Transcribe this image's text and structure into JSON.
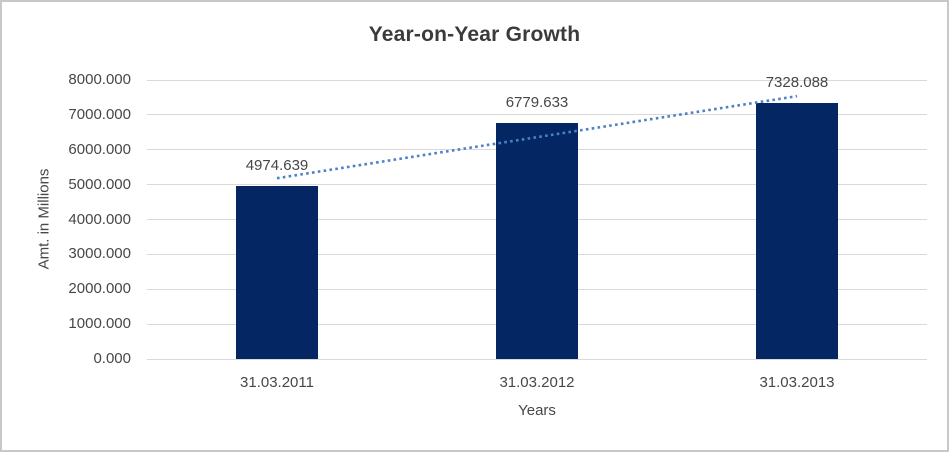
{
  "chart_data": {
    "type": "bar",
    "title": "Year-on-Year Growth",
    "xlabel": "Years",
    "ylabel": "Amt. in Millions",
    "categories": [
      "31.03.2011",
      "31.03.2012",
      "31.03.2013"
    ],
    "series": [
      {
        "name": "Amt. in Millions",
        "values": [
          4974.639,
          6779.633,
          7328.088
        ],
        "data_labels": [
          "4974.639",
          "6779.633",
          "7328.088"
        ],
        "color": "#042663"
      }
    ],
    "trendline": {
      "type": "linear",
      "style": "dotted",
      "color": "#4d80c4",
      "fit_of_series": "Amt. in Millions"
    },
    "ylim": [
      0,
      8000
    ],
    "y_tick_labels": [
      "0.000",
      "1000.000",
      "2000.000",
      "3000.000",
      "4000.000",
      "5000.000",
      "6000.000",
      "7000.000",
      "8000.000"
    ],
    "grid": true,
    "gridline_color": "#d9d9d9",
    "legend_position": "none",
    "data_label_position": "outside-end",
    "text_color": "#474747",
    "title_color": "#3b3b3b",
    "frame_border_color": "#c8c8c8"
  }
}
